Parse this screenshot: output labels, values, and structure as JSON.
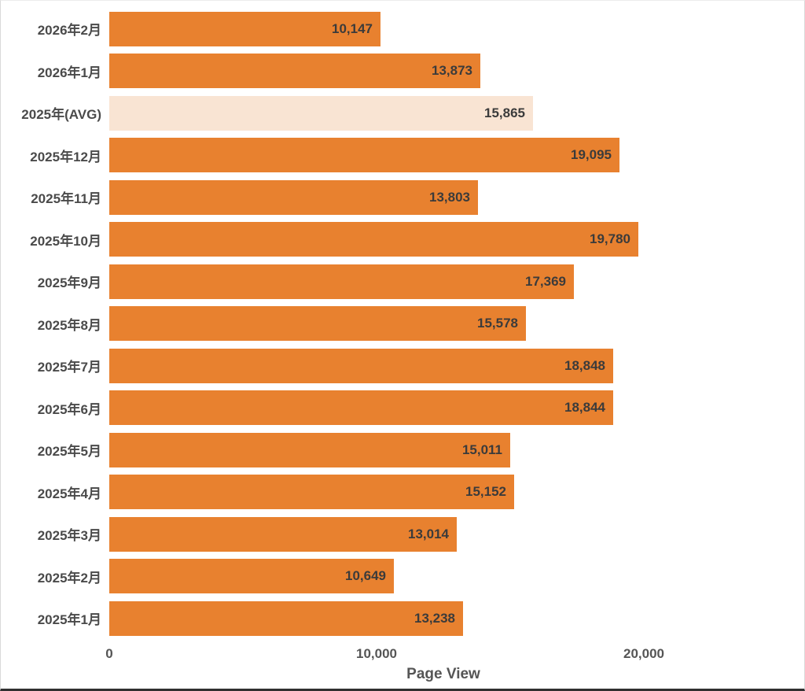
{
  "chart_data": {
    "type": "bar",
    "orientation": "horizontal",
    "title": "",
    "xlabel": "Page View",
    "ylabel": "",
    "categories": [
      "2026年2月",
      "2026年1月",
      "2025年(AVG)",
      "2025年12月",
      "2025年11月",
      "2025年10月",
      "2025年9月",
      "2025年8月",
      "2025年7月",
      "2025年6月",
      "2025年5月",
      "2025年4月",
      "2025年3月",
      "2025年2月",
      "2025年1月"
    ],
    "values": [
      10147,
      13873,
      15865,
      19095,
      13803,
      19780,
      17369,
      15578,
      18848,
      18844,
      15011,
      15152,
      13014,
      10649,
      13238
    ],
    "value_labels": [
      "10,147",
      "13,873",
      "15,865",
      "19,095",
      "13,803",
      "19,780",
      "17,369",
      "15,578",
      "18,848",
      "18,844",
      "15,011",
      "15,152",
      "13,014",
      "10,649",
      "13,238"
    ],
    "xlim": [
      0,
      20000
    ],
    "x_ticks": [
      {
        "value": 0,
        "label": "0"
      },
      {
        "value": 10000,
        "label": "10,000"
      },
      {
        "value": 20000,
        "label": "20,000"
      }
    ],
    "grid": false,
    "legend": false,
    "highlight_index": 2,
    "colors": {
      "bar": "#E8812F",
      "highlight_bar": "#F9E4D3",
      "category_text": "#4A4A4A",
      "value_text": "#3B3B3B",
      "tick_text": "#555555",
      "axis_title_text": "#555555"
    }
  }
}
